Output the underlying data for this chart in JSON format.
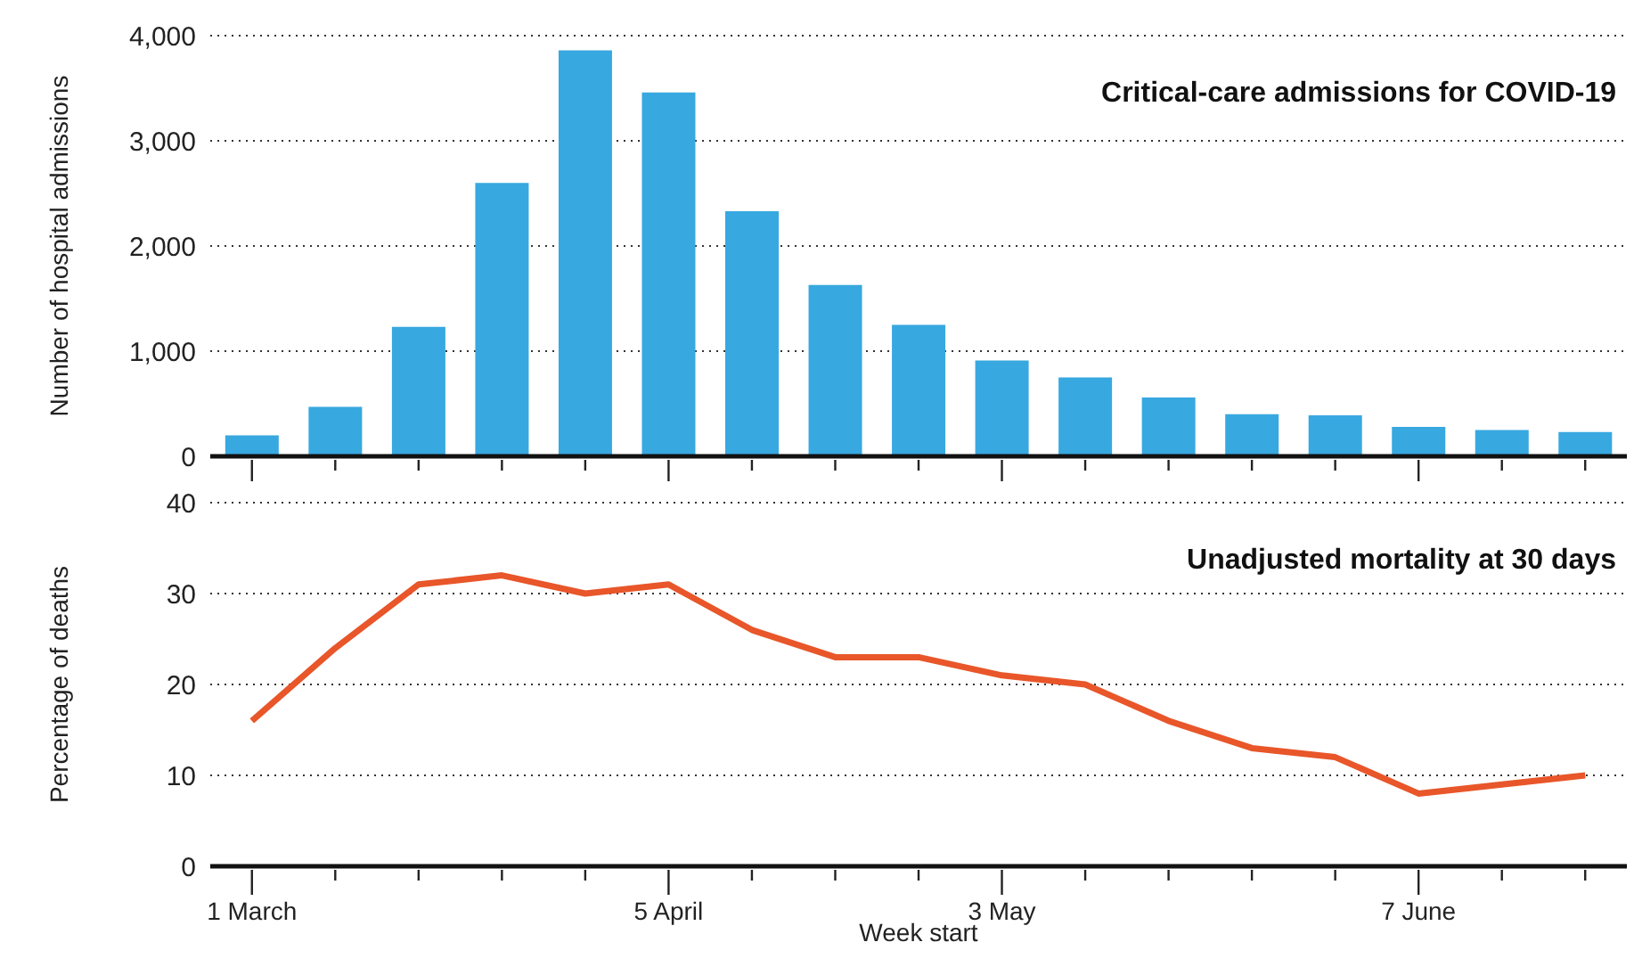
{
  "chart_data": [
    {
      "type": "bar",
      "title": "Critical-care admissions for COVID-19",
      "ylabel": "Number of hospital admissions",
      "categories": [
        null,
        null,
        null,
        null,
        null,
        null,
        null,
        null,
        null,
        null,
        null,
        null,
        null,
        null,
        null,
        null,
        null
      ],
      "series": [
        {
          "color": "#38a8e0",
          "values": [
            200,
            470,
            1230,
            2600,
            3860,
            3460,
            2330,
            1630,
            1250,
            910,
            750,
            560,
            400,
            390,
            280,
            250,
            230
          ]
        }
      ],
      "ylim": [
        0,
        4000
      ],
      "yticks": [
        {
          "value": 0,
          "label": "0"
        },
        {
          "value": 1000,
          "label": "1,000"
        },
        {
          "value": 2000,
          "label": "2,000"
        },
        {
          "value": 3000,
          "label": "3,000"
        },
        {
          "value": 4000,
          "label": "4,000"
        }
      ],
      "grid": "y",
      "tick_labels": "y"
    },
    {
      "type": "line",
      "title": "Unadjusted mortality at 30 days",
      "ylabel": "Percentage of deaths",
      "xlabel": "Week start",
      "categories": [
        "1 March",
        null,
        null,
        null,
        null,
        "5 April",
        null,
        null,
        null,
        "3 May",
        null,
        null,
        null,
        null,
        "7 June",
        null,
        null
      ],
      "series": [
        {
          "color": "#e8562a",
          "values": [
            16,
            24,
            31,
            32,
            30,
            31,
            26,
            23,
            23,
            21,
            20,
            16,
            13,
            12,
            8,
            9,
            10
          ]
        }
      ],
      "ylim": [
        0,
        40
      ],
      "yticks": [
        0,
        10,
        20,
        30,
        40
      ],
      "grid": "y",
      "marker": "none",
      "line_style": "solid"
    }
  ]
}
